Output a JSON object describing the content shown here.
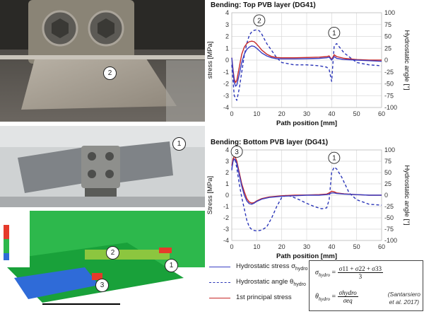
{
  "photos": {
    "top": {
      "callout": "2"
    },
    "middle": {
      "callout": "1"
    },
    "bottom": {
      "callout1": "2",
      "callout2": "1",
      "callout3": "3"
    }
  },
  "legend": {
    "hydrostatic_stress": "Hydrostatic stress σ",
    "hydrostatic_stress_sub": "hydro",
    "hydrostatic_angle": "Hydrostatic angle θ",
    "hydrostatic_angle_sub": "hydro",
    "principal_stress": "1st principal stress"
  },
  "formula": {
    "sigma_lhs": "σ",
    "sigma_sub": "hydro",
    "sigma_num": "σ11 + σ22 + σ33",
    "sigma_den": "3",
    "theta_lhs": "θ",
    "theta_sub": "hydro",
    "theta_num": "σhydro",
    "theta_den": "σeq",
    "citation_line1": "(Santarsiero",
    "citation_line2": "et al. 2017)"
  },
  "colors": {
    "hydrostatic_stress": "#3a3fc4",
    "hydrostatic_angle": "#2b36b8",
    "principal_stress": "#c62828"
  },
  "chart_data": [
    {
      "type": "line",
      "title": "Bending: Top PVB layer (DG41)",
      "xlabel": "Path position [mm]",
      "ylabel": "stress [MPa]",
      "y2label": "Hydrostatic angle [°]",
      "xlim": [
        0,
        60
      ],
      "ylim": [
        -4,
        4
      ],
      "y2lim": [
        -100,
        100
      ],
      "xticks": [
        0,
        10,
        20,
        30,
        40,
        50,
        60
      ],
      "yticks": [
        4,
        3,
        2,
        1,
        0,
        -1,
        -2,
        -3,
        -4
      ],
      "y2ticks": [
        100,
        75,
        50,
        25,
        0,
        -25,
        -50,
        -75,
        -100
      ],
      "callouts": [
        {
          "label": "2",
          "x": 11,
          "y": 3.35
        },
        {
          "label": "1",
          "x": 41,
          "y": 2.3
        }
      ],
      "series": [
        {
          "name": "Hydrostatic stress σhydro",
          "axis": "left",
          "style": "solid",
          "x": [
            0,
            0.5,
            1,
            1.5,
            2,
            3,
            4,
            5,
            6,
            7,
            8,
            9,
            10,
            11,
            12,
            14,
            16,
            18,
            20,
            25,
            30,
            35,
            38,
            39,
            40,
            41,
            42,
            45,
            50,
            55,
            60
          ],
          "y": [
            0.2,
            -1.0,
            -1.9,
            -2.2,
            -2.1,
            -1.2,
            -0.2,
            0.5,
            0.9,
            1.1,
            1.2,
            1.15,
            1.0,
            0.8,
            0.6,
            0.35,
            0.2,
            0.12,
            0.1,
            0.1,
            0.12,
            0.15,
            0.2,
            0.25,
            0.0,
            0.3,
            0.15,
            0.05,
            0.0,
            -0.05,
            -0.1
          ]
        },
        {
          "name": "Hydrostatic angle θhydro",
          "axis": "right",
          "style": "dashed",
          "x": [
            0,
            0.5,
            1,
            2,
            3,
            4,
            5,
            6,
            7,
            8,
            9,
            10,
            11,
            12,
            13,
            14,
            16,
            18,
            20,
            25,
            30,
            35,
            38,
            39,
            40,
            41,
            42,
            45,
            50,
            55,
            60
          ],
          "y": [
            -10,
            -45,
            -75,
            -85,
            -60,
            -25,
            10,
            35,
            52,
            60,
            63,
            64,
            62,
            55,
            45,
            35,
            20,
            5,
            -5,
            -10,
            -10,
            -12,
            -15,
            -20,
            -45,
            30,
            35,
            15,
            -5,
            -10,
            -12
          ]
        },
        {
          "name": "1st principal stress",
          "axis": "left",
          "style": "solid",
          "x": [
            0,
            0.5,
            1,
            1.5,
            2,
            3,
            4,
            5,
            6,
            7,
            8,
            9,
            10,
            11,
            12,
            14,
            16,
            18,
            20,
            25,
            30,
            35,
            38,
            39,
            40,
            41,
            42,
            45,
            50,
            55,
            60
          ],
          "y": [
            0.2,
            -0.8,
            -1.6,
            -1.9,
            -1.7,
            -0.6,
            0.5,
            1.1,
            1.4,
            1.55,
            1.6,
            1.55,
            1.35,
            1.1,
            0.85,
            0.5,
            0.3,
            0.22,
            0.2,
            0.2,
            0.22,
            0.25,
            0.3,
            0.35,
            0.05,
            0.45,
            0.3,
            0.15,
            0.05,
            0.0,
            0.0
          ]
        }
      ]
    },
    {
      "type": "line",
      "title": "Bending: Bottom PVB layer (DG41)",
      "xlabel": "Path position [mm]",
      "ylabel": "Stress [MPa]",
      "y2label": "Hydrostatic angle [°]",
      "xlim": [
        0,
        60
      ],
      "ylim": [
        -4,
        4
      ],
      "y2lim": [
        -100,
        100
      ],
      "xticks": [
        0,
        10,
        20,
        30,
        40,
        50,
        60
      ],
      "yticks": [
        4,
        3,
        2,
        1,
        0,
        -1,
        -2,
        -3,
        -4
      ],
      "y2ticks": [
        100,
        75,
        50,
        25,
        0,
        -25,
        -50,
        -75,
        -100
      ],
      "callouts": [
        {
          "label": "3",
          "x": 2,
          "y": 3.85
        },
        {
          "label": "1",
          "x": 41,
          "y": 3.3
        }
      ],
      "series": [
        {
          "name": "Hydrostatic stress σhydro",
          "axis": "left",
          "style": "solid",
          "x": [
            0,
            0.5,
            1,
            1.5,
            2,
            3,
            4,
            5,
            6,
            7,
            8,
            9,
            10,
            12,
            15,
            20,
            25,
            30,
            35,
            38,
            39,
            40,
            41,
            42,
            45,
            50,
            55,
            60
          ],
          "y": [
            2.3,
            3.0,
            3.2,
            3.1,
            2.8,
            1.8,
            0.8,
            0.0,
            -0.5,
            -0.75,
            -0.8,
            -0.7,
            -0.55,
            -0.35,
            -0.2,
            -0.1,
            -0.05,
            0.0,
            0.0,
            0.05,
            0.1,
            0.2,
            0.2,
            0.15,
            0.1,
            0.05,
            0.0,
            0.0
          ]
        },
        {
          "name": "Hydrostatic angle θhydro",
          "axis": "right",
          "style": "dashed",
          "x": [
            0,
            0.5,
            1,
            1.5,
            2,
            3,
            4,
            5,
            6,
            7,
            8,
            9,
            10,
            12,
            14,
            16,
            18,
            20,
            22,
            24,
            27,
            30,
            33,
            36,
            38,
            39,
            40,
            41,
            42,
            44,
            47,
            50,
            55,
            60
          ],
          "y": [
            55,
            80,
            82,
            75,
            60,
            25,
            -5,
            -30,
            -55,
            -70,
            -76,
            -78,
            -79,
            -77,
            -70,
            -50,
            -25,
            -5,
            0,
            -3,
            -10,
            -18,
            -25,
            -30,
            -28,
            -10,
            50,
            62,
            58,
            40,
            5,
            -10,
            -20,
            -22
          ]
        },
        {
          "name": "1st principal stress",
          "axis": "left",
          "style": "solid",
          "x": [
            0,
            0.5,
            1,
            1.5,
            2,
            3,
            4,
            5,
            6,
            7,
            8,
            9,
            10,
            12,
            15,
            20,
            25,
            30,
            35,
            38,
            39,
            40,
            41,
            42,
            45,
            50,
            55,
            60
          ],
          "y": [
            2.6,
            3.2,
            3.45,
            3.3,
            3.0,
            2.0,
            1.0,
            0.3,
            -0.3,
            -0.6,
            -0.7,
            -0.65,
            -0.5,
            -0.3,
            -0.15,
            -0.05,
            0.0,
            0.02,
            0.05,
            0.1,
            0.2,
            0.35,
            0.3,
            0.2,
            0.12,
            0.05,
            0.0,
            0.0
          ]
        }
      ]
    }
  ]
}
